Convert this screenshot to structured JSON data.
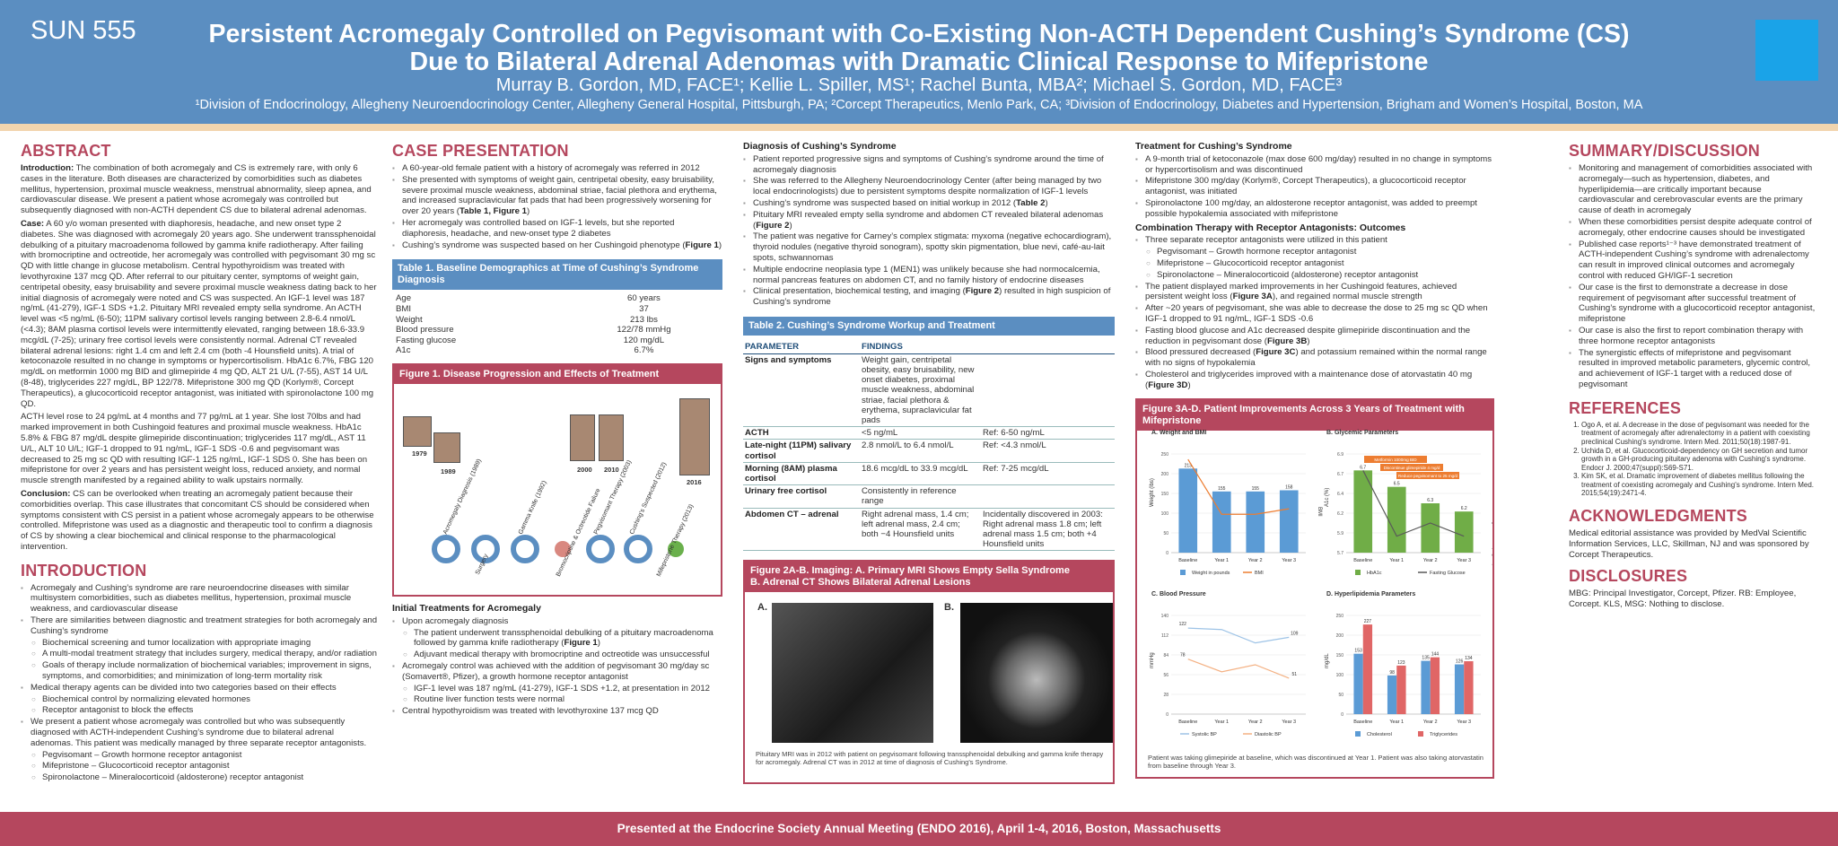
{
  "header": {
    "poster_id": "SUN 555",
    "title_line1": "Persistent Acromegaly Controlled on Pegvisomant with Co-Existing Non-ACTH Dependent Cushing’s Syndrome (CS)",
    "title_line2": "Due to Bilateral Adrenal Adenomas with Dramatic Clinical Response to Mifepristone",
    "authors": "Murray B. Gordon, MD, FACE¹; Kellie L. Spiller, MS¹; Rachel Bunta, MBA²; Michael S. Gordon, MD, FACE³",
    "affiliations": "¹Division of Endocrinology, Allegheny Neuroendocrinology Center, Allegheny General Hospital, Pittsburgh, PA; ²Corcept Therapeutics, Menlo Park, CA; ³Division of Endocrinology, Diabetes and Hypertension, Brigham and Women’s Hospital, Boston, MA"
  },
  "abstract": {
    "title": "ABSTRACT",
    "intro_label": "Introduction:",
    "intro": " The combination of both acromegaly and CS is extremely rare, with only 6 cases in the literature. Both diseases are characterized by comorbidities such as diabetes mellitus, hypertension, proximal muscle weakness, menstrual abnormality, sleep apnea, and cardiovascular disease. We present a patient whose acromegaly was controlled but subsequently diagnosed with non-ACTH dependent CS due to bilateral adrenal adenomas.",
    "case_label": "Case:",
    "case": " A 60 y/o woman presented with diaphoresis, headache, and new onset type 2 diabetes. She was diagnosed with acromegaly 20 years ago. She underwent transsphenoidal debulking of a pituitary macroadenoma followed by gamma knife radiotherapy. After failing with bromocriptine and octreotide, her acromegaly was controlled with pegvisomant 30 mg sc QD with little change in glucose metabolism. Central hypothyroidism was treated with levothyroxine 137 mcg QD. After referral to our pituitary center, symptoms of weight gain, centripetal obesity, easy bruisability and severe proximal muscle weakness dating back to her initial diagnosis of acromegaly were noted and CS was suspected. An IGF-1 level was 187 ng/mL (41-279), IGF-1 SDS +1.2. Pituitary MRI revealed empty sella syndrome. An ACTH level was <5 ng/mL (6-50); 11PM salivary cortisol levels ranging between 2.8-6.4 nmol/L (<4.3); 8AM plasma cortisol levels were intermittently elevated, ranging between 18.6-33.9 mcg/dL (7-25); urinary free cortisol levels were consistently normal. Adrenal CT revealed bilateral adrenal lesions: right 1.4 cm and left 2.4 cm (both -4 Hounsfield units). A trial of ketoconazole resulted in no change in symptoms or hypercortisolism. HbA1c 6.7%, FBG 120 mg/dL on metformin 1000 mg BID and glimepiride 4 mg QD, ALT 21 U/L (7-55), AST 14 U/L (8-48), triglycerides 227 mg/dL, BP 122/78. Mifepristone 300 mg QD (Korlym®, Corcept Therapeutics), a glucocorticoid receptor antagonist, was initiated with spironolactone 100 mg QD.",
    "case2": "ACTH level rose to 24 pg/mL at 4 months and 77 pg/mL at 1 year. She lost 70lbs and had marked improvement in both Cushingoid features and proximal muscle weakness. HbA1c 5.8% & FBG 87 mg/dL despite glimepiride discontinuation; triglycerides 117 mg/dL, AST 11 U/L, ALT 10 U/L; IGF-1 dropped to 91 ng/mL, IGF-1 SDS -0.6 and pegvisomant was decreased to 25 mg sc QD with resulting IGF-1 125 ng/mL, IGF-1 SDS 0. She has been on mifepristone for over 2 years and has persistent weight loss, reduced anxiety, and normal muscle strength manifested by a regained ability to walk upstairs normally.",
    "conclusion_label": "Conclusion:",
    "conclusion": " CS can be overlooked when treating an acromegaly patient because their comorbidities overlap. This case illustrates that concomitant CS should be considered when symptoms consistent with CS persist in a patient whose acromegaly appears to be otherwise controlled. Mifepristone was used as a diagnostic and therapeutic tool to confirm a diagnosis of CS by showing a clear biochemical and clinical response to the pharmacological intervention."
  },
  "introduction": {
    "title": "INTRODUCTION",
    "b1": "Acromegaly and Cushing’s syndrome are rare neuroendocrine diseases with similar multisystem comorbidities, such as diabetes mellitus, hypertension, proximal muscle weakness, and cardiovascular disease",
    "b2": "There are similarities between diagnostic and treatment strategies for both acromegaly and Cushing’s syndrome",
    "b2s1": "Biochemical screening and tumor localization with appropriate imaging",
    "b2s2": "A multi-modal treatment strategy that includes surgery, medical therapy, and/or radiation",
    "b2s3": "Goals of therapy include normalization of biochemical variables; improvement in signs, symptoms, and comorbidities; and minimization of long-term mortality risk",
    "b3": "Medical therapy agents can be divided into two categories based on their effects",
    "b3s1": "Biochemical control by normalizing elevated hormones",
    "b3s2": "Receptor antagonist to block the effects",
    "b4": "We present a patient whose acromegaly was controlled but who was subsequently diagnosed with ACTH-independent Cushing’s syndrome due to bilateral adrenal adenomas. This patient was medically managed by three separate receptor antagonists.",
    "b4s1": "Pegvisomant – Growth hormone receptor antagonist",
    "b4s2": "Mifepristone – Glucocorticoid receptor antagonist",
    "b4s3": "Spironolactone – Mineralocorticoid (aldosterone) receptor antagonist"
  },
  "case": {
    "title": "CASE PRESENTATION",
    "b1": "A 60-year-old female patient with a history of acromegaly was referred in 2012",
    "b2": "She presented with symptoms of weight gain, centripetal obesity, easy bruisability, severe proximal muscle weakness, abdominal striae, facial plethora and erythema, and increased supraclavicular fat pads that had been progressively worsening for over 20 years (",
    "b2_ref": "Table 1, Figure 1",
    "b2_end": ")",
    "b3": "Her acromegaly was controlled based on IGF-1 levels, but she reported diaphoresis, headache, and new-onset type 2 diabetes",
    "b4": "Cushing’s syndrome was suspected based on her Cushingoid phenotype (",
    "b4_ref": "Figure 1",
    "b4_end": ")"
  },
  "table1": {
    "title": "Table 1. Baseline Demographics at Time of Cushing’s Syndrome Diagnosis",
    "rows": [
      {
        "label": "Age",
        "value": "60 years"
      },
      {
        "label": "BMI",
        "value": "37"
      },
      {
        "label": "Weight",
        "value": "213 lbs"
      },
      {
        "label": "Blood pressure",
        "value": "122/78 mmHg"
      },
      {
        "label": "Fasting glucose",
        "value": "120 mg/dL"
      },
      {
        "label": "A1c",
        "value": "6.7%"
      }
    ]
  },
  "figure1": {
    "title": "Figure 1. Disease Progression and Effects of Treatment",
    "years": [
      "1979",
      "1989",
      "2000",
      "2010",
      "2016"
    ],
    "labels": [
      "Acromegaly Diagnosis (1989)",
      "Surgery",
      "Gamma Knife (1992)",
      "Bromocriptine & Octreotide Failure",
      "Pegvisomant Therapy (2003)",
      "Cushing's Suspected (2012)",
      "Mifepristone Therapy (2013)"
    ]
  },
  "initial": {
    "title": "Initial Treatments for Acromegaly",
    "b1": "Upon acromegaly diagnosis",
    "b1s1": "The patient underwent transsphenoidal debulking of a pituitary macroadenoma followed by gamma knife radiotherapy (",
    "b1s1_ref": "Figure 1",
    "b1s1_end": ")",
    "b1s2": "Adjuvant medical therapy with bromocriptine and octreotide was unsuccessful",
    "b2": "Acromegaly control was achieved with the addition of pegvisomant 30 mg/day sc (Somavert®, Pfizer), a growth hormone receptor antagonist",
    "b2s1": "IGF-1 level was 187 ng/mL (41-279), IGF-1 SDS +1.2, at presentation in 2012",
    "b2s2": "Routine liver function tests were normal",
    "b3": "Central hypothyroidism was treated with levothyroxine 137 mcg QD"
  },
  "diagnosis": {
    "title": "Diagnosis of Cushing’s Syndrome",
    "b1": "Patient reported progressive signs and symptoms of Cushing’s syndrome around the time of acromegaly diagnosis",
    "b2": "She was referred to the Allegheny Neuroendocrinology Center (after being managed by two local endocrinologists) due to persistent symptoms despite normalization of IGF-1 levels",
    "b3": "Cushing’s syndrome was suspected based on initial workup in 2012 (",
    "b3_ref": "Table 2",
    "b3_end": ")",
    "b4": "Pituitary MRI revealed empty sella syndrome and abdomen CT revealed bilateral adenomas (",
    "b4_ref": "Figure 2",
    "b4_end": ")",
    "b5": "The patient was negative for Carney’s complex stigmata: myxoma (negative echocardiogram), thyroid nodules (negative thyroid sonogram), spotty skin pigmentation, blue nevi, café-au-lait spots, schwannomas",
    "b6": "Multiple endocrine neoplasia type 1 (MEN1) was unlikely because she had normocalcemia, normal pancreas features on abdomen CT, and no family history of endocrine diseases",
    "b7": "Clinical presentation, biochemical testing, and imaging (",
    "b7_ref": "Figure 2",
    "b7_end": ") resulted in high suspicion of Cushing’s syndrome"
  },
  "table2": {
    "title": "Table 2. Cushing’s Syndrome Workup and Treatment",
    "col1": "PARAMETER",
    "col2": "FINDINGS",
    "rows": [
      {
        "p": "Signs and symptoms",
        "f": "Weight gain, centripetal obesity, easy bruisability, new onset diabetes, proximal muscle weakness, abdominal striae, facial plethora & erythema, supraclavicular fat pads",
        "r": ""
      },
      {
        "p": "ACTH",
        "f": "<5 ng/mL",
        "r": "Ref: 6-50 ng/mL"
      },
      {
        "p": "Late-night (11PM) salivary cortisol",
        "f": "2.8 nmol/L to 6.4 nmol/L",
        "r": "Ref: <4.3 nmol/L"
      },
      {
        "p": "Morning (8AM) plasma cortisol",
        "f": "18.6 mcg/dL to 33.9 mcg/dL",
        "r": "Ref: 7-25 mcg/dL"
      },
      {
        "p": "Urinary free cortisol",
        "f": "Consistently in reference range",
        "r": ""
      },
      {
        "p": "Abdomen CT – adrenal",
        "f": "Right adrenal mass, 1.4 cm; left adrenal mass, 2.4 cm; both −4 Hounsfield units",
        "r": "Incidentally discovered in 2003: Right adrenal mass 1.8 cm; left adrenal mass 1.5 cm; both +4 Hounsfield units"
      }
    ]
  },
  "figure2": {
    "title_line1": "Figure 2A-B. Imaging: A. Primary MRI Shows Empty Sella Syndrome",
    "title_line2": "B. Adrenal CT Shows Bilateral Adrenal Lesions",
    "label_a": "A.",
    "label_b": "B.",
    "caption": "Pituitary MRI was in 2012 with patient on pegvisomant following transsphenoidal debulking and gamma knife therapy for acromegaly. Adrenal CT was in 2012 at time of diagnosis of Cushing's Syndrome."
  },
  "treatment": {
    "title": "Treatment for Cushing’s Syndrome",
    "b1": "A 9-month trial of ketoconazole (max dose 600 mg/day) resulted in no change in symptoms or hypercortisolism and was discontinued",
    "b2": "Mifepristone 300 mg/day (Korlym®, Corcept Therapeutics), a glucocorticoid receptor antagonist, was initiated",
    "b3": "Spironolactone 100 mg/day, an aldosterone receptor antagonist, was added to preempt possible hypokalemia associated with mifepristone"
  },
  "combination": {
    "title": "Combination Therapy with Receptor Antagonists: Outcomes",
    "b1": "Three separate receptor antagonists were utilized in this patient",
    "b1s1": "Pegvisomant – Growth hormone receptor antagonist",
    "b1s2": "Mifepristone – Glucocorticoid receptor antagonist",
    "b1s3": "Spironolactone – Mineralocorticoid (aldosterone) receptor antagonist",
    "b2": "The patient displayed marked improvements in her Cushingoid features, achieved persistent weight loss (",
    "b2_ref": "Figure 3A",
    "b2_end": "), and regained normal muscle strength",
    "b3": "After ~20 years of pegvisomant, she was able to decrease the dose to 25 mg sc QD when IGF-1 dropped to 91 ng/mL, IGF-1 SDS -0.6",
    "b4": "Fasting blood glucose and A1c decreased despite glimepiride discontinuation and the reduction in pegvisomant dose (",
    "b4_ref": "Figure 3B",
    "b4_end": ")",
    "b5": "Blood pressured decreased (",
    "b5_ref": "Figure 3C",
    "b5_end": ") and potassium remained within the normal range with no signs of hypokalemia",
    "b6": "Cholesterol and triglycerides improved with a maintenance dose of atorvastatin 40 mg (",
    "b6_ref": "Figure 3D",
    "b6_end": ")"
  },
  "figure3": {
    "title": "Figure 3A-D. Patient Improvements Across 3 Years of Treatment with Mifepristone",
    "caption": "Patient was taking glimepiride at baseline, which was discontinued at Year 1. Patient was also taking atorvastatin from baseline through Year 3."
  },
  "chart_data": [
    {
      "type": "bar",
      "title": "A. Weight and BMI",
      "categories": [
        "Baseline",
        "Year 1",
        "Year 2",
        "Year 3"
      ],
      "series": [
        {
          "name": "Weight in pounds",
          "values": [
            213,
            155,
            155,
            158
          ],
          "color": "#5b9bd5"
        },
        {
          "name": "BMI",
          "values": [
            37,
            27,
            27,
            28
          ],
          "color": "#ed7d31",
          "kind": "line"
        }
      ],
      "ylabel": "Weight (lbs)",
      "ylim": [
        0,
        250
      ],
      "y2label": "BMI",
      "y2lim": [
        20,
        38
      ]
    },
    {
      "type": "bar",
      "title": "B. Glycemic Parameters",
      "categories": [
        "Baseline",
        "Year 1",
        "Year 2",
        "Year 3"
      ],
      "series": [
        {
          "name": "HbA1c",
          "values": [
            6.7,
            6.5,
            6.3,
            6.2
          ],
          "color": "#70ad47"
        },
        {
          "name": "Fasting Glucose",
          "values": [
            120,
            100,
            104,
            100
          ],
          "color": "#595959",
          "kind": "line"
        }
      ],
      "ylabel": "A1c (%)",
      "ylim": [
        5.7,
        6.9
      ],
      "y2label": "Fasting Glucose (mg/dL)",
      "y2lim": [
        95,
        125
      ],
      "annotations": [
        "Metformin 1000mg BID",
        "Discontinue glimepiride 4 mg/d",
        "Reduce pegvisomant to 25 mg/d"
      ]
    },
    {
      "type": "line",
      "title": "C. Blood Pressure",
      "categories": [
        "Baseline",
        "Year 1",
        "Year 2",
        "Year 3"
      ],
      "series": [
        {
          "name": "Systolic BP",
          "values": [
            122,
            120,
            101,
            109
          ],
          "color": "#9dc3e6"
        },
        {
          "name": "Diastolic BP",
          "values": [
            78,
            60,
            70,
            51
          ],
          "color": "#f4b183"
        }
      ],
      "ylabel": "mmHg",
      "ylim": [
        0,
        140
      ]
    },
    {
      "type": "bar",
      "title": "D. Hyperlipidemia Parameters",
      "categories": [
        "Baseline",
        "Year 1",
        "Year 2",
        "Year 3"
      ],
      "series": [
        {
          "name": "Cholesterol",
          "values": [
            153,
            98,
            135,
            126
          ],
          "color": "#5b9bd5"
        },
        {
          "name": "Triglycerides",
          "values": [
            227,
            123,
            144,
            134
          ],
          "color": "#e06666"
        }
      ],
      "ylabel": "mg/dL",
      "ylim": [
        0,
        250
      ]
    }
  ],
  "summary": {
    "title": "SUMMARY/DISCUSSION",
    "b1": "Monitoring and management of comorbidities associated with acromegaly—such as hypertension, diabetes, and hyperlipidemia—are critically important because cardiovascular and cerebrovascular events are the primary cause of death in acromegaly",
    "b2": "When these comorbidities persist despite adequate control of acromegaly, other endocrine causes should be investigated",
    "b3": "Published case reports¹⁻³ have demonstrated treatment of ACTH-independent Cushing’s syndrome with adrenalectomy can result in improved clinical outcomes and acromegaly control with reduced GH/IGF-1 secretion",
    "b4": "Our case is the first to demonstrate a decrease in dose requirement of pegvisomant after successful treatment of Cushing’s syndrome with a glucocorticoid receptor antagonist, mifepristone",
    "b5": "Our case is also the first to report combination therapy with three hormone receptor antagonists",
    "b6": "The synergistic effects of mifepristone and pegvisomant resulted in improved metabolic parameters, glycemic control, and achievement of IGF-1 target with a reduced dose of pegvisomant"
  },
  "references": {
    "title": "REFERENCES",
    "r1": "Ogo A, et al. A decrease in the dose of pegvisomant was needed for the treatment of acromegaly after adrenalectomy in a patient with coexisting preclinical Cushing's syndrome. Intern Med. 2011;50(18):1987-91.",
    "r2": "Uchida D, et al. Glucocorticoid-dependency on GH secretion and tumor growth in a GH-producing pituitary adenoma with Cushing's syndrome. Endocr J. 2000;47(suppl):S69-S71.",
    "r3": "Kim SK, et al. Dramatic improvement of diabetes mellitus following the treatment of coexisting acromegaly and Cushing's syndrome. Intern Med. 2015;54(19):2471-4."
  },
  "acknowledgments": {
    "title": "ACKNOWLEDGMENTS",
    "text": "Medical editorial assistance was provided by MedVal Scientific Information Services, LLC, Skillman, NJ and was sponsored by Corcept Therapeutics."
  },
  "disclosures": {
    "title": "DISCLOSURES",
    "text": "MBG: Principal Investigator, Corcept, Pfizer. RB: Employee, Corcept. KLS, MSG: Nothing to disclose."
  },
  "footer": {
    "text": "Presented at the Endocrine Society Annual Meeting (ENDO 2016), April  1-4, 2016, Boston, Massachusetts"
  },
  "colors": {
    "header_blue": "#5b8ec1",
    "accent_red": "#b5475e",
    "stripe": "#f2d5ae",
    "logo_blue": "#1aa3e8"
  }
}
